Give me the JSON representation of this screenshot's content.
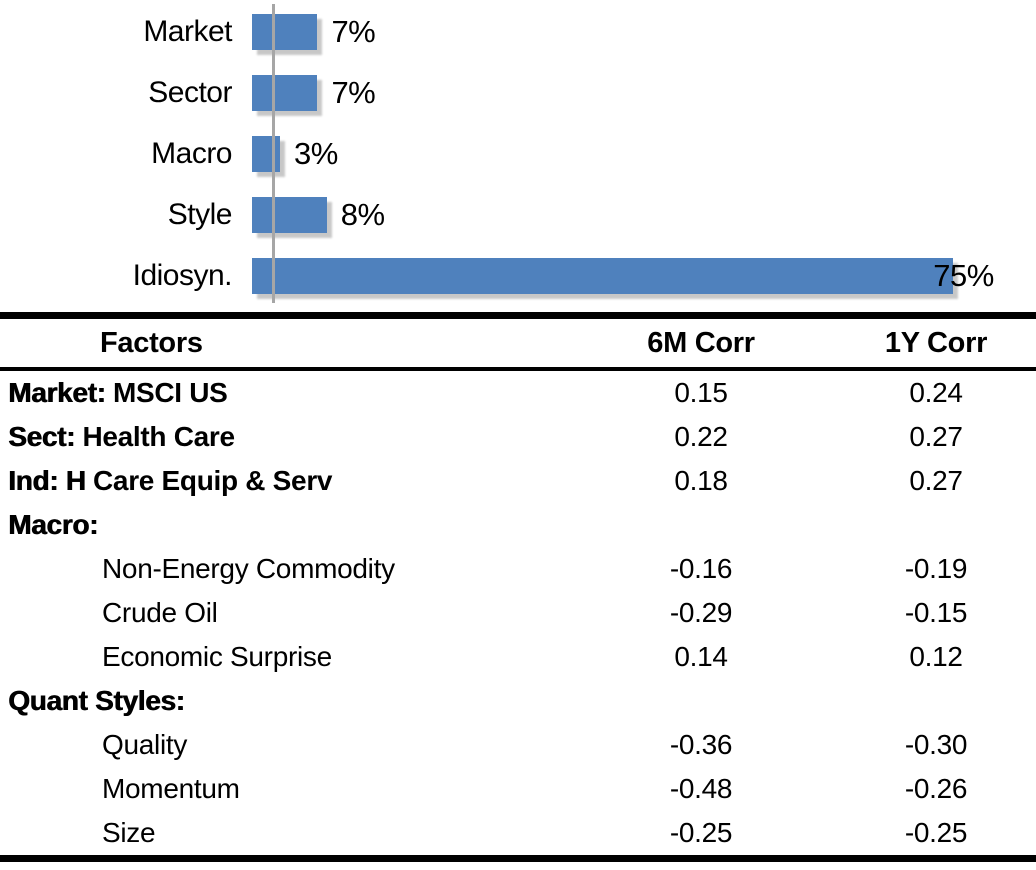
{
  "page": {
    "background": "#ffffff",
    "text_color": "#000000"
  },
  "chart_data": [
    {
      "type": "bar",
      "orientation": "horizontal",
      "title": "",
      "categories": [
        "Market",
        "Sector",
        "Macro",
        "Style",
        "Idiosyn."
      ],
      "values": [
        7,
        7,
        3,
        8,
        75
      ],
      "value_labels": [
        "7%",
        "7%",
        "3%",
        "8%",
        "75%"
      ],
      "unit": "percent",
      "xlim": [
        0,
        80
      ],
      "bar_color": "#4F81BD",
      "axis_line_color": "#A6A6A6",
      "gridlines": false,
      "legend": false,
      "data_labels_position": "outside-end"
    },
    {
      "type": "table",
      "headers": [
        "Factors",
        "6M Corr",
        "1Y Corr"
      ],
      "rows": [
        {
          "prefix": "Market:",
          "name": " MSCI US",
          "kind": "major",
          "corr_6m": "0.15",
          "corr_1y": "0.24"
        },
        {
          "prefix": "Sect:",
          "name": " Health Care",
          "kind": "major",
          "corr_6m": "0.22",
          "corr_1y": "0.27"
        },
        {
          "prefix": "Ind: H",
          "name": " Care Equip & Serv",
          "kind": "major",
          "corr_6m": "0.18",
          "corr_1y": "0.27"
        },
        {
          "prefix": "Macro:",
          "name": "",
          "kind": "section",
          "corr_6m": "",
          "corr_1y": ""
        },
        {
          "prefix": "",
          "name": "Non-Energy Commodity",
          "kind": "sub",
          "corr_6m": "-0.16",
          "corr_1y": "-0.19"
        },
        {
          "prefix": "",
          "name": "Crude Oil",
          "kind": "sub",
          "corr_6m": "-0.29",
          "corr_1y": "-0.15"
        },
        {
          "prefix": "",
          "name": "Economic Surprise",
          "kind": "sub",
          "corr_6m": "0.14",
          "corr_1y": "0.12"
        },
        {
          "prefix": "Quant Styles:",
          "name": "",
          "kind": "section",
          "corr_6m": "",
          "corr_1y": ""
        },
        {
          "prefix": "",
          "name": "Quality",
          "kind": "sub",
          "corr_6m": "-0.36",
          "corr_1y": "-0.30"
        },
        {
          "prefix": "",
          "name": "Momentum",
          "kind": "sub",
          "corr_6m": "-0.48",
          "corr_1y": "-0.26"
        },
        {
          "prefix": "",
          "name": "Size",
          "kind": "sub",
          "corr_6m": "-0.25",
          "corr_1y": "-0.25"
        }
      ]
    }
  ]
}
